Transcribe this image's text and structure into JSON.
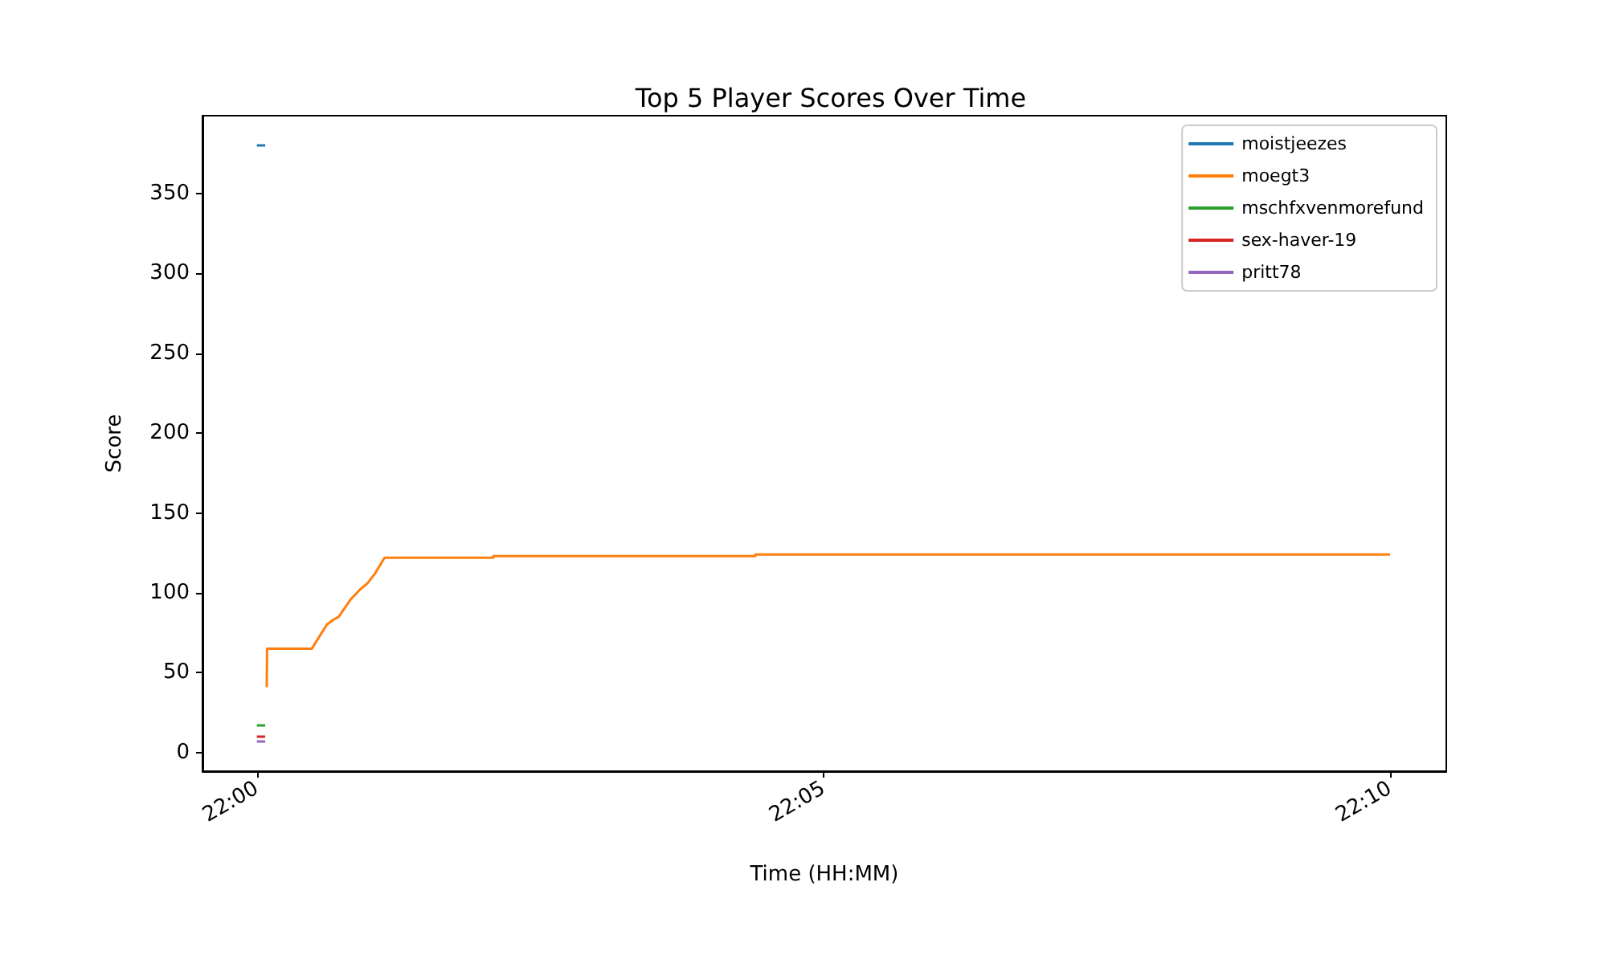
{
  "chart_data": {
    "type": "line",
    "title": "Top 5 Player Scores Over Time",
    "xlabel": "Time (HH:MM)",
    "ylabel": "Score",
    "xlim": [
      21.99197,
      22.17494
    ],
    "ylim": [
      -11.6,
      398.6
    ],
    "xticks": [
      {
        "value": 22,
        "label": "22:00"
      },
      {
        "value": 22.08333,
        "label": "22:05"
      },
      {
        "value": 22.16667,
        "label": "22:10"
      }
    ],
    "yticks": [
      0,
      50,
      100,
      150,
      200,
      250,
      300,
      350
    ],
    "grid": false,
    "legend": "top right",
    "marker": "none",
    "line_style": "solid",
    "series": [
      {
        "name": "moistjeezes",
        "color": "#1f77b4",
        "x": [
          21.99997,
          22.0012
        ],
        "values": [
          380,
          380
        ]
      },
      {
        "name": "moegt3",
        "color": "#ff7f0e",
        "x": [
          22.00142,
          22.00147,
          22.00804,
          22.01024,
          22.01118,
          22.01199,
          22.01379,
          22.01513,
          22.01624,
          22.01733,
          22.01875,
          22.03475,
          22.03476,
          22.07329,
          22.0733,
          22.16667
        ],
        "values": [
          41,
          65,
          65,
          80,
          83,
          85,
          96,
          102,
          106,
          112,
          122,
          122,
          123,
          123,
          124,
          124
        ]
      },
      {
        "name": "mschfxvenmorefund",
        "color": "#2ca02c",
        "x": [
          21.99997,
          22.0012
        ],
        "values": [
          17,
          17
        ]
      },
      {
        "name": "sex-haver-19",
        "color": "#d62728",
        "x": [
          21.99997,
          22.0012
        ],
        "values": [
          10,
          10
        ]
      },
      {
        "name": "pritt78",
        "color": "#9467bd",
        "x": [
          21.99997,
          22.0012
        ],
        "values": [
          7,
          7
        ]
      }
    ]
  }
}
